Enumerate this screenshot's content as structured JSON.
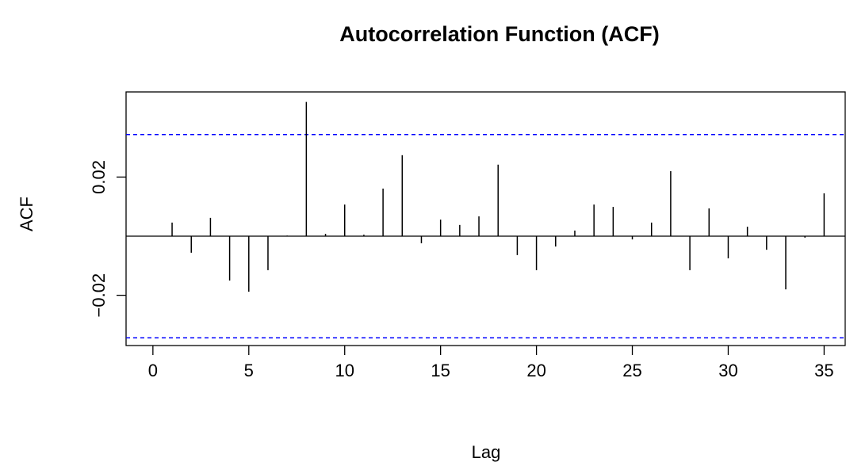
{
  "chart_data": {
    "type": "acf",
    "title": "Autocorrelation Function (ACF)",
    "x_label": "Lag",
    "y_label": "ACF",
    "x": [
      0,
      1,
      2,
      3,
      4,
      5,
      6,
      7,
      8,
      9,
      10,
      11,
      12,
      13,
      14,
      15,
      16,
      17,
      18,
      19,
      20,
      21,
      22,
      23,
      24,
      25,
      26,
      27,
      28,
      29,
      30,
      31,
      32,
      33,
      34,
      35
    ],
    "values": [
      0,
      0.0046,
      -0.0056,
      0.0062,
      -0.015,
      -0.0188,
      -0.0115,
      0.0002,
      0.0454,
      0.0008,
      0.0107,
      0.0005,
      0.0161,
      0.0274,
      -0.0024,
      0.0056,
      0.0038,
      0.0067,
      0.0242,
      -0.0064,
      -0.0115,
      -0.0035,
      0.0019,
      0.0107,
      0.0099,
      -0.0011,
      0.0046,
      0.022,
      -0.0115,
      0.0094,
      -0.0075,
      0.0032,
      -0.0046,
      -0.018,
      -0.0005,
      0.0145
    ],
    "color": "#000000",
    "ci": [
      -0.0344,
      0.0344
    ],
    "ci_color": "#0000ff",
    "xlim": [
      -1.4,
      36.1
    ],
    "xticks": [
      0,
      5,
      10,
      15,
      20,
      25,
      30,
      35
    ],
    "ylim": [
      -0.037,
      0.0488
    ],
    "yticks": [
      {
        "value": -0.02,
        "label": "−0.02"
      },
      0.02
    ]
  }
}
